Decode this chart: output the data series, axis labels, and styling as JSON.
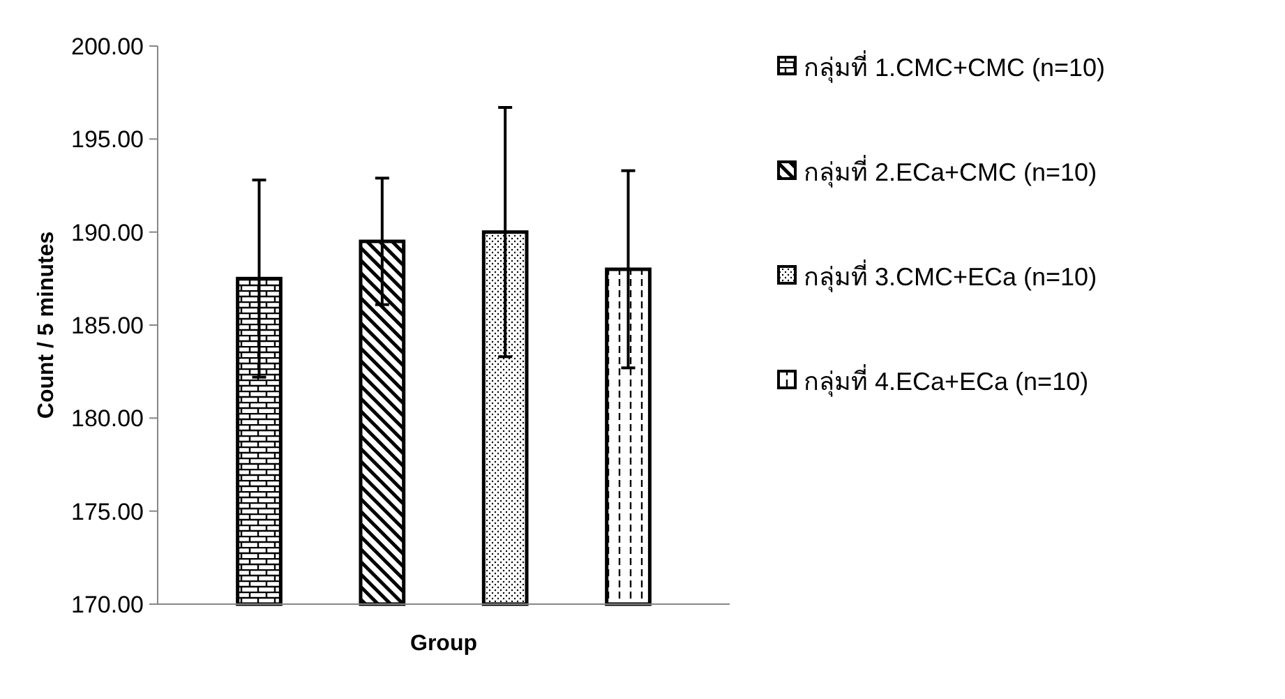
{
  "chart_data": {
    "type": "bar",
    "xlabel": "Group",
    "ylabel": "Count / 5 minutes",
    "categories": [
      null,
      null,
      null,
      null
    ],
    "series": [
      {
        "name": "กลุ่มที่ 1.CMC+CMC (n=10)",
        "color": "#000000",
        "values": [
          187.5,
          null,
          null,
          null
        ],
        "errors": [
          5.3,
          null,
          null,
          null
        ]
      },
      {
        "name": "กลุ่มที่ 2.ECa+CMC (n=10)",
        "color": "#000000",
        "values": [
          null,
          189.5,
          null,
          null
        ],
        "errors": [
          null,
          3.4,
          null,
          null
        ]
      },
      {
        "name": "กลุ่มที่ 3.CMC+ECa (n=10)",
        "color": "#000000",
        "values": [
          null,
          null,
          190.0,
          null
        ],
        "errors": [
          null,
          null,
          6.7,
          null
        ]
      },
      {
        "name": "กลุ่มที่ 4.ECa+ECa (n=10)",
        "color": "#000000",
        "values": [
          null,
          null,
          null,
          188.0
        ],
        "errors": [
          null,
          null,
          null,
          5.3
        ]
      }
    ],
    "ylim": [
      170,
      200
    ],
    "yticks": [
      {
        "value": 170,
        "label": "170.00"
      },
      {
        "value": 175,
        "label": "175.00"
      },
      {
        "value": 180,
        "label": "180.00"
      },
      {
        "value": 185,
        "label": "185.00"
      },
      {
        "value": 190,
        "label": "190.00"
      },
      {
        "value": 195,
        "label": "195.00"
      },
      {
        "value": 200,
        "label": "200.00"
      }
    ],
    "grid": false,
    "legend": "right"
  }
}
